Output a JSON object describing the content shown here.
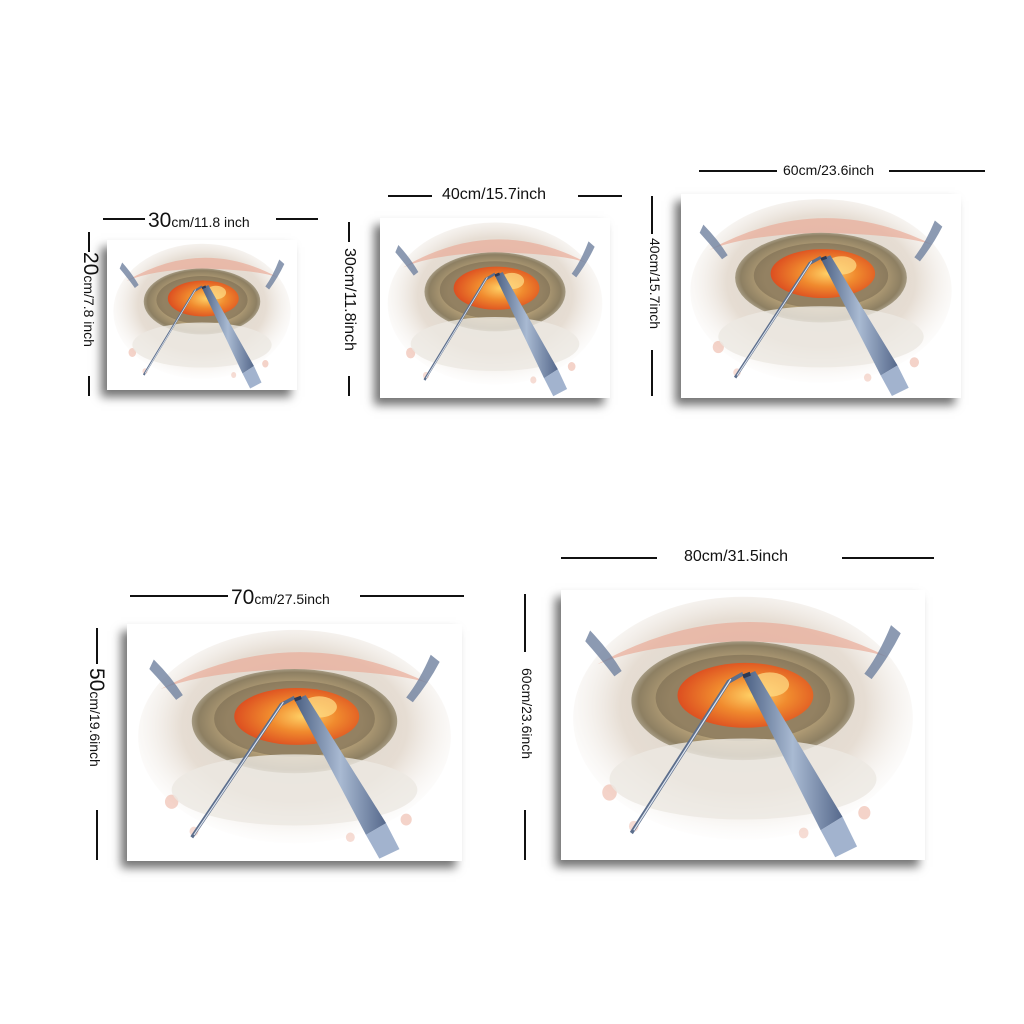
{
  "sizes": [
    {
      "width_value": "30",
      "width_unit": "cm/11.8 inch",
      "height_value": "20",
      "height_unit": "cm/7.8 inch"
    },
    {
      "width_label": "40cm/15.7inch",
      "height_label": "30cm/11.8inch"
    },
    {
      "width_label": "60cm/23.6inch",
      "height_label": "40cm/15.7inch"
    },
    {
      "width_value": "70",
      "width_unit": "cm/27.5inch",
      "height_value": "50",
      "height_unit": "cm/19.6inch"
    },
    {
      "width_label": "80cm/31.5inch",
      "height_label": "60cm/23.6inch"
    }
  ],
  "colors": {
    "iris_orange": "#f08a2e",
    "sclera_pink": "#e9a893",
    "instrument_blue": "#7c93b8",
    "shadow": "#333333"
  }
}
